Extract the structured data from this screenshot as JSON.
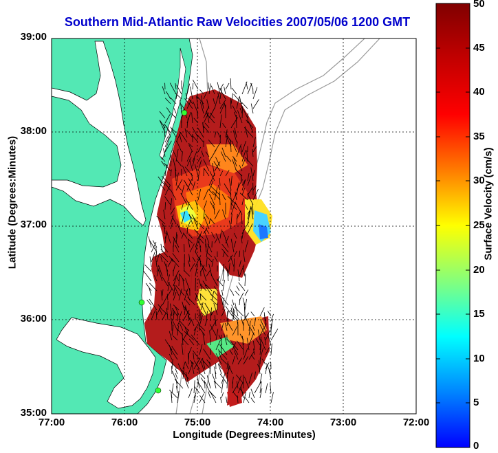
{
  "title": "Southern Mid-Atlantic Raw Velocities 2007/05/06 1200 GMT",
  "xlabel": "Longitude (Degrees:Minutes)",
  "ylabel": "Latitude (Degrees:Minutes)",
  "colorbar_label": "Surface Velocity (cm/s)",
  "x_ticks": [
    "77:00",
    "76:00",
    "75:00",
    "74:00",
    "73:00",
    "72:00"
  ],
  "y_ticks": [
    "39:00",
    "38:00",
    "37:00",
    "36:00",
    "35:00"
  ],
  "colorbar_ticks": [
    "50",
    "45",
    "40",
    "35",
    "30",
    "25",
    "20",
    "15",
    "10",
    "5",
    "0"
  ],
  "colors": {
    "land": "#53e8b4",
    "title": "#0000cc",
    "grid": "#000000",
    "bathymetry": "#9a9a9a",
    "station": "#33ff33"
  },
  "map_extent": {
    "lon_range": [
      -77,
      -72
    ],
    "lat_range": [
      35,
      39
    ]
  },
  "colorbar_range": [
    0,
    50
  ]
}
